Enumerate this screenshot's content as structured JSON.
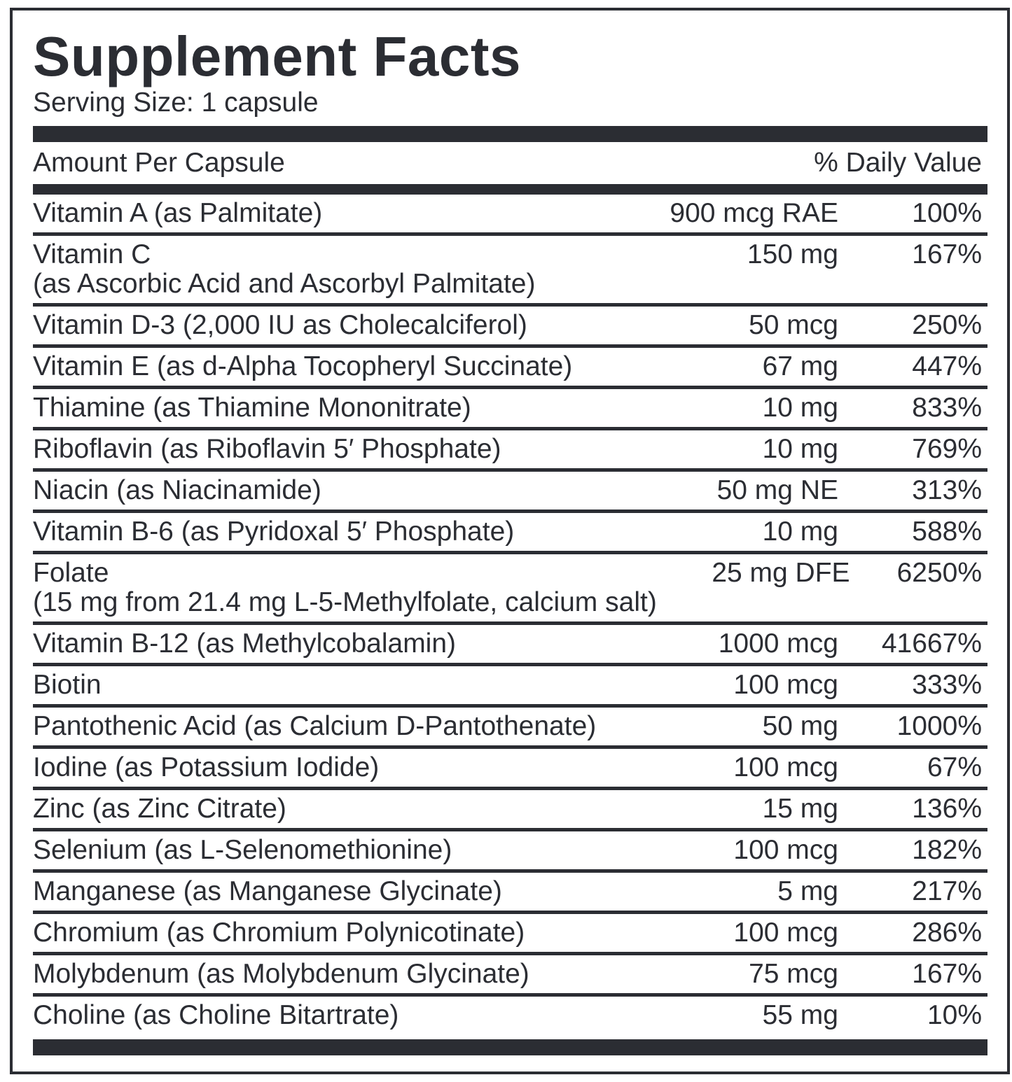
{
  "title": "Supplement Facts",
  "serving_size": "Serving Size: 1 capsule",
  "header": {
    "amount_label": "Amount Per Capsule",
    "dv_label": "% Daily Value"
  },
  "colors": {
    "ink": "#2b2d33",
    "background": "#ffffff"
  },
  "rows": [
    {
      "name": "Vitamin A (as Palmitate)",
      "sub": "",
      "amount": "900 mcg RAE",
      "dv": "100%"
    },
    {
      "name": "Vitamin C",
      "sub": "(as Ascorbic Acid and Ascorbyl Palmitate)",
      "amount": "150 mg",
      "dv": "167%"
    },
    {
      "name": "Vitamin D-3 (2,000 IU as Cholecalciferol)",
      "sub": "",
      "amount": "50 mcg",
      "dv": "250%"
    },
    {
      "name": "Vitamin E (as d-Alpha Tocopheryl Succinate)",
      "sub": "",
      "amount": "67 mg",
      "dv": "447%"
    },
    {
      "name": "Thiamine (as Thiamine Mononitrate)",
      "sub": "",
      "amount": "10 mg",
      "dv": "833%"
    },
    {
      "name": "Riboflavin (as Riboflavin 5′ Phosphate)",
      "sub": "",
      "amount": "10 mg",
      "dv": "769%"
    },
    {
      "name": "Niacin (as Niacinamide)",
      "sub": "",
      "amount": "50 mg NE",
      "dv": "313%"
    },
    {
      "name": "Vitamin B-6 (as Pyridoxal 5′ Phosphate)",
      "sub": "",
      "amount": "10 mg",
      "dv": "588%"
    },
    {
      "name": "Folate",
      "sub": "(15 mg from 21.4 mg L-5-Methylfolate, calcium salt)",
      "amount": "25 mg DFE",
      "dv": "6250%"
    },
    {
      "name": "Vitamin B-12 (as Methylcobalamin)",
      "sub": "",
      "amount": "1000 mcg",
      "dv": "41667%"
    },
    {
      "name": "Biotin",
      "sub": "",
      "amount": "100 mcg",
      "dv": "333%"
    },
    {
      "name": "Pantothenic Acid (as Calcium D-Pantothenate)",
      "sub": "",
      "amount": "50 mg",
      "dv": "1000%"
    },
    {
      "name": "Iodine (as Potassium Iodide)",
      "sub": "",
      "amount": "100 mcg",
      "dv": "67%"
    },
    {
      "name": "Zinc (as Zinc Citrate)",
      "sub": "",
      "amount": "15 mg",
      "dv": "136%"
    },
    {
      "name": "Selenium (as L-Selenomethionine)",
      "sub": "",
      "amount": "100 mcg",
      "dv": "182%"
    },
    {
      "name": "Manganese (as Manganese Glycinate)",
      "sub": "",
      "amount": "5 mg",
      "dv": "217%"
    },
    {
      "name": "Chromium (as Chromium Polynicotinate)",
      "sub": "",
      "amount": "100 mcg",
      "dv": "286%"
    },
    {
      "name": "Molybdenum (as Molybdenum Glycinate)",
      "sub": "",
      "amount": "75 mcg",
      "dv": "167%"
    },
    {
      "name": "Choline (as Choline Bitartrate)",
      "sub": "",
      "amount": "55 mg",
      "dv": "10%"
    }
  ]
}
